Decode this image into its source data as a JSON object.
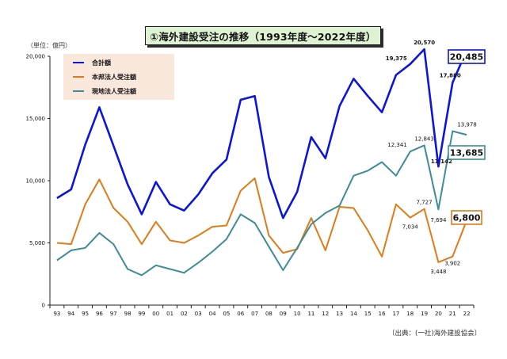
{
  "title": "①海外建設受注の推移（1993年度～2022年度）",
  "unit_note": "（単位：億円）",
  "source_note": "〔出典：(一社)海外建設協会〕",
  "chart_data": {
    "type": "line",
    "x": [
      "93",
      "94",
      "95",
      "96",
      "97",
      "98",
      "99",
      "00",
      "01",
      "02",
      "03",
      "04",
      "05",
      "06",
      "07",
      "08",
      "09",
      "10",
      "11",
      "12",
      "13",
      "14",
      "15",
      "16",
      "17",
      "18",
      "19",
      "20",
      "21",
      "22"
    ],
    "ylim": [
      0,
      20000
    ],
    "yticks": [
      0,
      5000,
      10000,
      15000,
      20000
    ],
    "ytick_labels": [
      "0",
      "5,000",
      "10,000",
      "15,000",
      "20,000"
    ],
    "grid": false,
    "legend_position": "top-left",
    "series": [
      {
        "name": "合計額",
        "color": "#0b16d9",
        "values": [
          8600,
          9300,
          12900,
          15900,
          12800,
          9700,
          7300,
          9900,
          8100,
          7600,
          8900,
          10600,
          11700,
          16500,
          16800,
          10300,
          7000,
          9100,
          13500,
          11800,
          16000,
          18200,
          16800,
          15500,
          18500,
          19375,
          20570,
          11142,
          17880,
          20485
        ]
      },
      {
        "name": "本邦法人受注額",
        "color": "#e07b18",
        "values": [
          5000,
          4900,
          8100,
          10100,
          7800,
          6700,
          4900,
          6700,
          5200,
          5000,
          5600,
          6300,
          6400,
          9200,
          10200,
          5600,
          4200,
          4500,
          7000,
          4400,
          7900,
          7800,
          6000,
          3900,
          8100,
          7034,
          7727,
          3448,
          3902,
          6800
        ]
      },
      {
        "name": "現地法人受注額",
        "color": "#3e8c96",
        "values": [
          3600,
          4400,
          4600,
          5800,
          4900,
          2900,
          2400,
          3200,
          2900,
          2600,
          3400,
          4300,
          5300,
          7300,
          6600,
          4700,
          2800,
          4600,
          6500,
          7400,
          8000,
          10400,
          10800,
          11500,
          10400,
          12341,
          12843,
          7694,
          13978,
          13685
        ]
      }
    ],
    "annotations": {
      "total": [
        "19,375",
        "20,570",
        "11,142",
        "17,880"
      ],
      "domestic": [
        "7,034",
        "7,727",
        "3,448",
        "3,902"
      ],
      "local": [
        "12,341",
        "12,843",
        "7,694",
        "13,978"
      ]
    },
    "end_labels": {
      "total": "20,485",
      "local": "13,685",
      "domestic": "6,800"
    }
  }
}
